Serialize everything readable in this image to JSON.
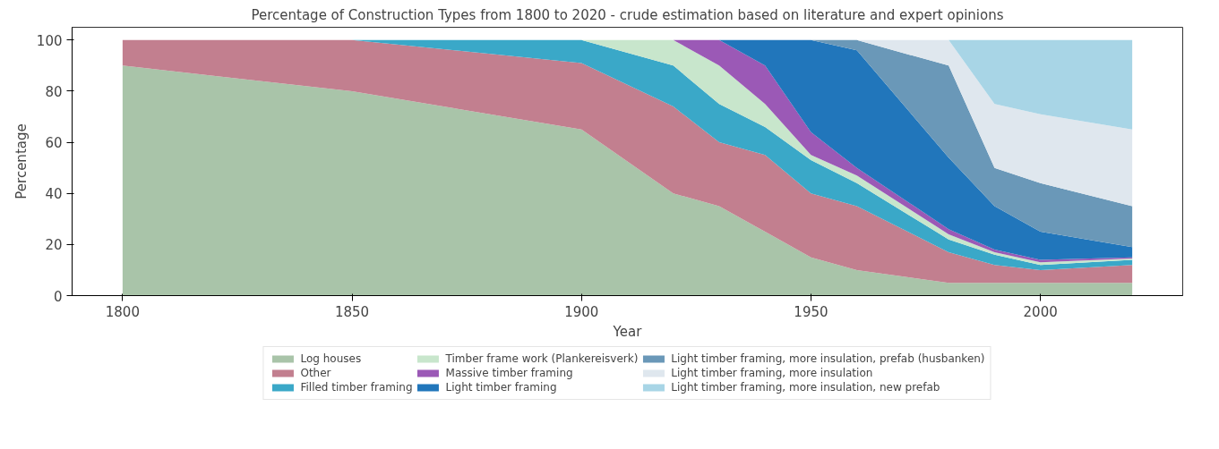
{
  "chart_data": {
    "type": "area",
    "stacked": true,
    "title": "Percentage of Construction Types from 1800 to 2020 - crude estimation based on literature and expert opinions",
    "xlabel": "Year",
    "ylabel": "Percentage",
    "x": [
      1800,
      1850,
      1900,
      1920,
      1930,
      1940,
      1950,
      1960,
      1980,
      1990,
      2000,
      2020
    ],
    "series": [
      {
        "name": "Log houses",
        "color": "#a9c4a9",
        "values": [
          90,
          80,
          65,
          40,
          35,
          25,
          15,
          10,
          5,
          5,
          5,
          5
        ]
      },
      {
        "name": "Other",
        "color": "#c27f8f",
        "values": [
          10,
          20,
          26,
          34,
          25,
          30,
          25,
          25,
          12,
          7,
          5,
          7
        ]
      },
      {
        "name": "Filled timber framing",
        "color": "#3aa8c8",
        "values": [
          0,
          0,
          9,
          16,
          15,
          11,
          13,
          9,
          5,
          4,
          2,
          2
        ]
      },
      {
        "name": "Timber frame work (Plankereisverk)",
        "color": "#c8e6cc",
        "values": [
          0,
          0,
          0,
          10,
          15,
          9,
          2,
          3,
          2,
          1,
          1,
          0.5
        ]
      },
      {
        "name": "Massive timber framing",
        "color": "#9b59b6",
        "values": [
          0,
          0,
          0,
          0,
          10,
          15,
          9,
          3,
          2,
          1,
          1,
          0.5
        ]
      },
      {
        "name": "Light timber framing",
        "color": "#2176bb",
        "values": [
          0,
          0,
          0,
          0,
          0,
          10,
          36,
          46,
          28,
          17,
          11,
          4
        ]
      },
      {
        "name": "Light timber framing, more insulation, prefab (husbanken)",
        "color": "#6a98b8",
        "values": [
          0,
          0,
          0,
          0,
          0,
          0,
          0,
          4,
          36,
          15,
          19,
          16
        ]
      },
      {
        "name": "Light timber framing, more insulation",
        "color": "#dfe7ee",
        "values": [
          0,
          0,
          0,
          0,
          0,
          0,
          0,
          0,
          10,
          25,
          27,
          30
        ]
      },
      {
        "name": "Light timber framing, more insulation, new prefab",
        "color": "#a8d5e6",
        "values": [
          0,
          0,
          0,
          0,
          0,
          0,
          0,
          0,
          0,
          25,
          29,
          35
        ]
      }
    ],
    "xlim": [
      1789,
      2031
    ],
    "ylim": [
      0,
      105
    ],
    "xticks": [
      1800,
      1850,
      1900,
      1950,
      2000
    ],
    "yticks": [
      0,
      20,
      40,
      60,
      80,
      100
    ],
    "legend": "bottom"
  }
}
